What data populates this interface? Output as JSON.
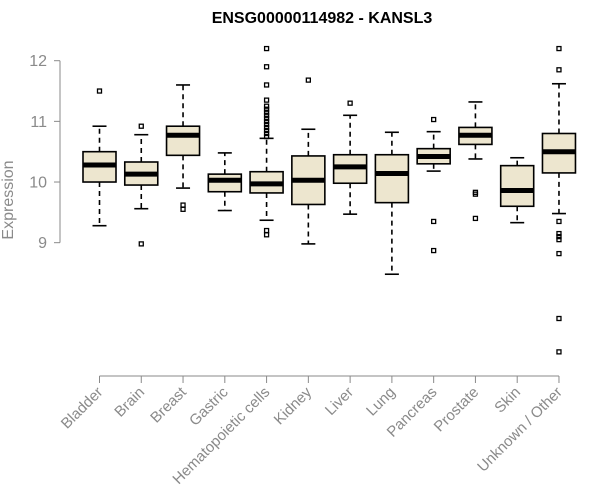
{
  "chart_data": {
    "type": "boxplot",
    "title": "ENSG00000114982 - KANSL3",
    "xlabel": "",
    "ylabel": "Expression",
    "ylim": [
      7.0,
      12.3
    ],
    "yticks": [
      9,
      10,
      11,
      12
    ],
    "box_fill": "#ede6cf",
    "axis_color": "#8a8a8a",
    "categories": [
      "Bladder",
      "Brain",
      "Breast",
      "Gastric",
      "Hematopoietic cells",
      "Kidney",
      "Liver",
      "Lung",
      "Pancreas",
      "Prostate",
      "Skin",
      "Unknown / Other"
    ],
    "boxes": [
      {
        "name": "Bladder",
        "whisker_low": 9.28,
        "q1": 10.0,
        "median": 10.28,
        "q3": 10.5,
        "whisker_high": 10.92,
        "outliers": [
          11.5
        ]
      },
      {
        "name": "Brain",
        "whisker_low": 9.56,
        "q1": 9.95,
        "median": 10.13,
        "q3": 10.33,
        "whisker_high": 10.78,
        "outliers": [
          8.98,
          10.92
        ]
      },
      {
        "name": "Breast",
        "whisker_low": 9.9,
        "q1": 10.44,
        "median": 10.77,
        "q3": 10.92,
        "whisker_high": 11.6,
        "outliers": [
          9.55,
          9.62
        ]
      },
      {
        "name": "Gastric",
        "whisker_low": 9.53,
        "q1": 9.84,
        "median": 10.03,
        "q3": 10.13,
        "whisker_high": 10.48,
        "outliers": []
      },
      {
        "name": "Hematopoietic cells",
        "whisker_low": 9.37,
        "q1": 9.82,
        "median": 9.97,
        "q3": 10.17,
        "whisker_high": 10.72,
        "outliers": [
          9.13,
          9.2,
          10.75,
          10.8,
          10.85,
          10.9,
          10.95,
          11.0,
          11.05,
          11.1,
          11.15,
          11.2,
          11.25,
          11.35,
          11.6,
          11.9,
          12.2
        ]
      },
      {
        "name": "Kidney",
        "whisker_low": 8.98,
        "q1": 9.63,
        "median": 10.03,
        "q3": 10.43,
        "whisker_high": 10.87,
        "outliers": [
          11.68
        ]
      },
      {
        "name": "Liver",
        "whisker_low": 9.47,
        "q1": 9.98,
        "median": 10.25,
        "q3": 10.45,
        "whisker_high": 11.1,
        "outliers": [
          11.3
        ]
      },
      {
        "name": "Lung",
        "whisker_low": 8.48,
        "q1": 9.66,
        "median": 10.14,
        "q3": 10.45,
        "whisker_high": 10.82,
        "outliers": []
      },
      {
        "name": "Pancreas",
        "whisker_low": 10.18,
        "q1": 10.3,
        "median": 10.42,
        "q3": 10.55,
        "whisker_high": 10.83,
        "outliers": [
          8.87,
          9.35,
          11.03
        ]
      },
      {
        "name": "Prostate",
        "whisker_low": 10.38,
        "q1": 10.62,
        "median": 10.77,
        "q3": 10.9,
        "whisker_high": 11.32,
        "outliers": [
          9.4,
          9.8,
          9.83
        ]
      },
      {
        "name": "Skin",
        "whisker_low": 9.33,
        "q1": 9.6,
        "median": 9.86,
        "q3": 10.27,
        "whisker_high": 10.4,
        "outliers": []
      },
      {
        "name": "Unknown / Other",
        "whisker_low": 9.48,
        "q1": 10.15,
        "median": 10.5,
        "q3": 10.8,
        "whisker_high": 11.62,
        "outliers": [
          7.2,
          7.75,
          8.82,
          9.05,
          9.1,
          9.15,
          9.35,
          11.85,
          12.2
        ]
      }
    ]
  }
}
